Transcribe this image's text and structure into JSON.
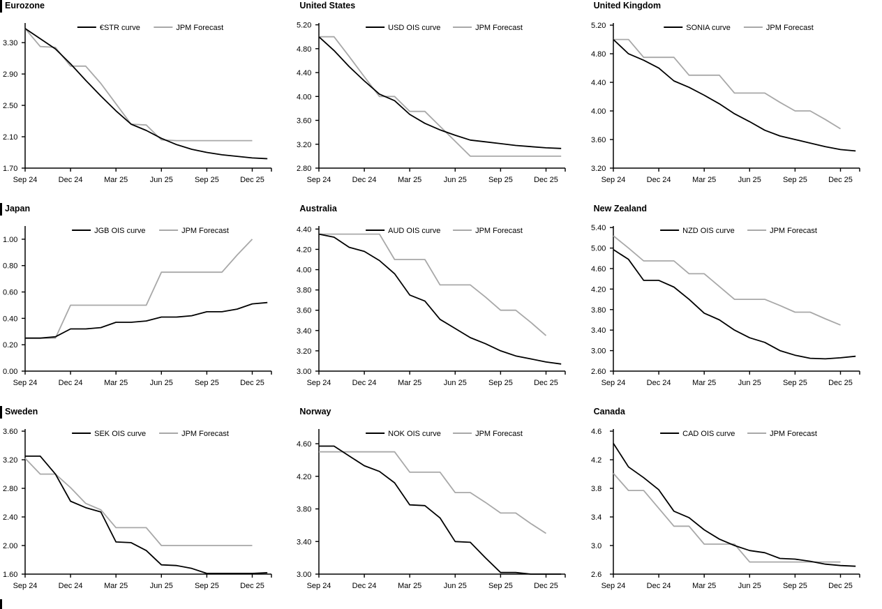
{
  "colors": {
    "curve": "#000000",
    "forecast": "#a8a8a8",
    "axis": "#000000",
    "text": "#000000",
    "background": "#ffffff"
  },
  "x_axis": {
    "tick_labels": [
      "Sep 24",
      "Dec 24",
      "Mar 25",
      "Jun 25",
      "Sep 25",
      "Dec 25"
    ],
    "tick_month_indices": [
      0,
      3,
      6,
      9,
      12,
      15
    ],
    "months": [
      "Sep 24",
      "Oct 24",
      "Nov 24",
      "Dec 24",
      "Jan 25",
      "Feb 25",
      "Mar 25",
      "Apr 25",
      "May 25",
      "Jun 25",
      "Jul 25",
      "Aug 25",
      "Sep 25",
      "Oct 25",
      "Nov 25",
      "Dec 25"
    ],
    "note": "series with 17 values extend slightly past the Dec 25 tick"
  },
  "chart_data": [
    {
      "type": "line",
      "title": "Eurozone",
      "section_bar": true,
      "y_axis": {
        "axis_min": 1.7,
        "axis_max": 3.55,
        "tick_values": [
          1.7,
          2.1,
          2.5,
          2.9,
          3.3
        ],
        "decimals": 2
      },
      "series": [
        {
          "name": "JPM Forecast",
          "role": "forecast",
          "values": [
            3.48,
            3.25,
            3.24,
            3.0,
            3.0,
            2.78,
            2.52,
            2.26,
            2.25,
            2.06,
            2.05,
            2.05,
            2.05,
            2.05,
            2.05,
            2.05
          ]
        },
        {
          "name": "€STR curve",
          "role": "curve",
          "values": [
            3.48,
            3.35,
            3.22,
            3.03,
            2.82,
            2.62,
            2.43,
            2.26,
            2.18,
            2.08,
            2.0,
            1.94,
            1.9,
            1.87,
            1.85,
            1.83,
            1.82
          ]
        }
      ]
    },
    {
      "type": "line",
      "title": "United States",
      "section_bar": false,
      "y_axis": {
        "axis_min": 2.8,
        "axis_max": 5.23,
        "tick_values": [
          2.8,
          3.2,
          3.6,
          4.0,
          4.4,
          4.8,
          5.2
        ],
        "decimals": 2
      },
      "series": [
        {
          "name": "JPM Forecast",
          "role": "forecast",
          "values": [
            5.0,
            5.0,
            4.67,
            4.33,
            4.0,
            4.0,
            3.75,
            3.75,
            3.5,
            3.25,
            3.0,
            3.0,
            3.0,
            3.0,
            3.0,
            3.0,
            3.0
          ]
        },
        {
          "name": "USD OIS curve",
          "role": "curve",
          "values": [
            5.0,
            4.77,
            4.5,
            4.26,
            4.04,
            3.93,
            3.7,
            3.55,
            3.44,
            3.35,
            3.27,
            3.24,
            3.21,
            3.18,
            3.16,
            3.14,
            3.13
          ]
        }
      ]
    },
    {
      "type": "line",
      "title": "United Kingdom",
      "section_bar": false,
      "y_axis": {
        "axis_min": 3.2,
        "axis_max": 5.23,
        "tick_values": [
          3.2,
          3.6,
          4.0,
          4.4,
          4.8,
          5.2
        ],
        "decimals": 2
      },
      "series": [
        {
          "name": "JPM Forecast",
          "role": "forecast",
          "values": [
            5.0,
            5.0,
            4.75,
            4.75,
            4.75,
            4.5,
            4.5,
            4.5,
            4.25,
            4.25,
            4.25,
            4.12,
            4.0,
            4.0,
            3.88,
            3.75
          ]
        },
        {
          "name": "SONIA curve",
          "role": "curve",
          "values": [
            5.0,
            4.8,
            4.71,
            4.6,
            4.42,
            4.33,
            4.22,
            4.1,
            3.96,
            3.85,
            3.73,
            3.65,
            3.6,
            3.55,
            3.5,
            3.46,
            3.44
          ]
        }
      ]
    },
    {
      "type": "line",
      "title": "Japan",
      "section_bar": true,
      "y_axis": {
        "axis_min": 0.0,
        "axis_max": 1.1,
        "tick_values": [
          0.0,
          0.2,
          0.4,
          0.6,
          0.8,
          1.0
        ],
        "decimals": 2
      },
      "series": [
        {
          "name": "JPM Forecast",
          "role": "forecast",
          "values": [
            0.25,
            0.25,
            0.25,
            0.5,
            0.5,
            0.5,
            0.5,
            0.5,
            0.5,
            0.75,
            0.75,
            0.75,
            0.75,
            0.75,
            0.88,
            1.0
          ]
        },
        {
          "name": "JGB OIS curve",
          "role": "curve",
          "values": [
            0.25,
            0.25,
            0.26,
            0.32,
            0.32,
            0.33,
            0.37,
            0.37,
            0.38,
            0.41,
            0.41,
            0.42,
            0.45,
            0.45,
            0.47,
            0.51,
            0.52
          ]
        }
      ]
    },
    {
      "type": "line",
      "title": "Australia",
      "section_bar": false,
      "y_axis": {
        "axis_min": 3.0,
        "axis_max": 4.43,
        "tick_values": [
          3.0,
          3.2,
          3.4,
          3.6,
          3.8,
          4.0,
          4.2,
          4.4
        ],
        "decimals": 2
      },
      "series": [
        {
          "name": "JPM Forecast",
          "role": "forecast",
          "values": [
            4.35,
            4.35,
            4.35,
            4.35,
            4.35,
            4.1,
            4.1,
            4.1,
            3.85,
            3.85,
            3.85,
            3.73,
            3.6,
            3.6,
            3.48,
            3.35
          ]
        },
        {
          "name": "AUD OIS curve",
          "role": "curve",
          "values": [
            4.35,
            4.32,
            4.22,
            4.18,
            4.09,
            3.96,
            3.75,
            3.69,
            3.51,
            3.42,
            3.33,
            3.27,
            3.2,
            3.15,
            3.12,
            3.09,
            3.07
          ]
        }
      ]
    },
    {
      "type": "line",
      "title": "New Zealand",
      "section_bar": false,
      "y_axis": {
        "axis_min": 2.6,
        "axis_max": 5.43,
        "tick_values": [
          2.6,
          3.0,
          3.4,
          3.8,
          4.2,
          4.6,
          5.0,
          5.4
        ],
        "decimals": 2
      },
      "series": [
        {
          "name": "JPM Forecast",
          "role": "forecast",
          "values": [
            5.24,
            5.0,
            4.75,
            4.75,
            4.75,
            4.5,
            4.5,
            4.25,
            4.0,
            4.0,
            4.0,
            3.88,
            3.75,
            3.75,
            3.62,
            3.5
          ]
        },
        {
          "name": "NZD OIS curve",
          "role": "curve",
          "values": [
            4.97,
            4.78,
            4.37,
            4.37,
            4.24,
            4.0,
            3.73,
            3.6,
            3.4,
            3.25,
            3.16,
            3.0,
            2.91,
            2.85,
            2.84,
            2.86,
            2.89
          ]
        }
      ]
    },
    {
      "type": "line",
      "title": "Sweden",
      "section_bar": true,
      "y_axis": {
        "axis_min": 1.6,
        "axis_max": 3.63,
        "tick_values": [
          1.6,
          2.0,
          2.4,
          2.8,
          3.2,
          3.6
        ],
        "decimals": 2
      },
      "series": [
        {
          "name": "JPM Forecast",
          "role": "forecast",
          "values": [
            3.22,
            3.0,
            3.0,
            2.81,
            2.59,
            2.5,
            2.25,
            2.25,
            2.25,
            2.0,
            2.0,
            2.0,
            2.0,
            2.0,
            2.0,
            2.0
          ]
        },
        {
          "name": "SEK OIS curve",
          "role": "curve",
          "values": [
            3.25,
            3.25,
            3.0,
            2.62,
            2.53,
            2.47,
            2.05,
            2.04,
            1.93,
            1.73,
            1.72,
            1.68,
            1.61,
            1.61,
            1.61,
            1.61,
            1.62
          ]
        }
      ]
    },
    {
      "type": "line",
      "title": "Norway",
      "section_bar": false,
      "y_axis": {
        "axis_min": 3.0,
        "axis_max": 4.78,
        "tick_values": [
          3.0,
          3.4,
          3.8,
          4.2,
          4.6
        ],
        "decimals": 2
      },
      "series": [
        {
          "name": "JPM Forecast",
          "role": "forecast",
          "values": [
            4.5,
            4.5,
            4.5,
            4.5,
            4.5,
            4.5,
            4.25,
            4.25,
            4.25,
            4.0,
            4.0,
            3.88,
            3.75,
            3.75,
            3.62,
            3.5
          ]
        },
        {
          "name": "NOK OIS curve",
          "role": "curve",
          "values": [
            4.57,
            4.57,
            4.45,
            4.33,
            4.26,
            4.12,
            3.85,
            3.84,
            3.69,
            3.4,
            3.39,
            3.2,
            3.02,
            3.02,
            3.0,
            3.0,
            3.0
          ]
        }
      ]
    },
    {
      "type": "line",
      "title": "Canada",
      "section_bar": false,
      "y_axis": {
        "axis_min": 2.6,
        "axis_max": 4.63,
        "tick_values": [
          2.6,
          3.0,
          3.4,
          3.8,
          4.2,
          4.6
        ],
        "decimals": 1
      },
      "series": [
        {
          "name": "JPM Forecast",
          "role": "forecast",
          "values": [
            4.01,
            3.77,
            3.77,
            3.52,
            3.27,
            3.27,
            3.02,
            3.02,
            3.02,
            2.77,
            2.77,
            2.77,
            2.77,
            2.77,
            2.77,
            2.77
          ]
        },
        {
          "name": "CAD OIS curve",
          "role": "curve",
          "values": [
            4.43,
            4.1,
            3.95,
            3.78,
            3.48,
            3.39,
            3.22,
            3.09,
            3.0,
            2.93,
            2.9,
            2.82,
            2.81,
            2.78,
            2.74,
            2.72,
            2.71
          ]
        }
      ]
    }
  ]
}
